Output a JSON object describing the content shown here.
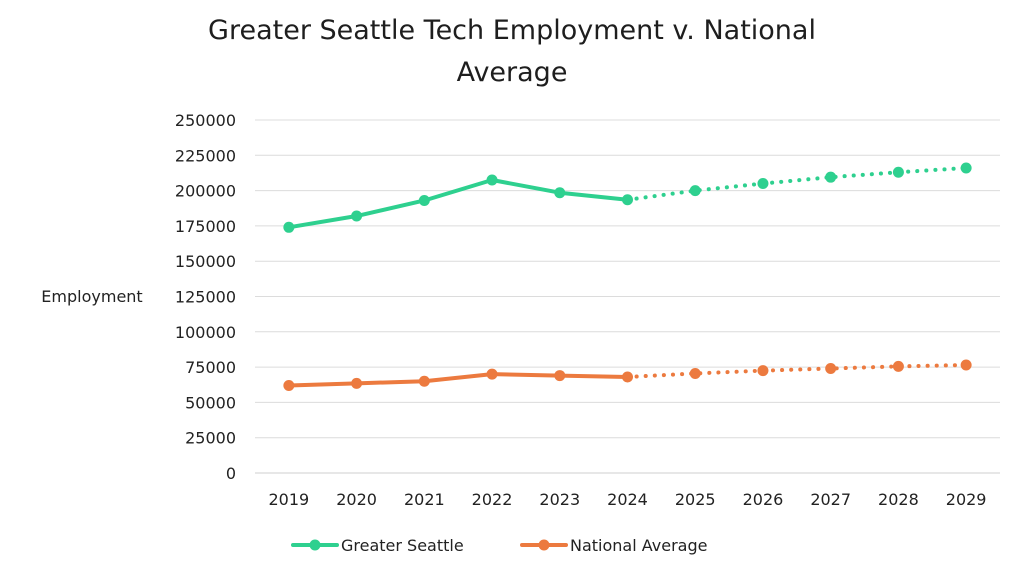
{
  "chart_data": {
    "type": "line",
    "title_line1": "Greater Seattle Tech Employment v. National",
    "title_line2": "Average",
    "ylabel": "Employment",
    "xlabel": "",
    "categories": [
      "2019",
      "2020",
      "2021",
      "2022",
      "2023",
      "2024",
      "2025",
      "2026",
      "2027",
      "2028",
      "2029"
    ],
    "yticks": [
      "0",
      "25000",
      "50000",
      "75000",
      "100000",
      "125000",
      "150000",
      "175000",
      "200000",
      "225000",
      "250000"
    ],
    "ylim": [
      0,
      250000
    ],
    "grid": true,
    "legend_position": "bottom",
    "projection_start": "2024",
    "series": [
      {
        "name": "Greater Seattle",
        "color": "#2ed08f",
        "values": [
          174000,
          182000,
          193000,
          207500,
          198500,
          193500,
          200000,
          205000,
          209500,
          213000,
          216000
        ]
      },
      {
        "name": "National Average",
        "color": "#ec7a3f",
        "values": [
          62000,
          63500,
          65000,
          70000,
          69000,
          68000,
          70500,
          72500,
          74000,
          75500,
          76500
        ]
      }
    ]
  }
}
